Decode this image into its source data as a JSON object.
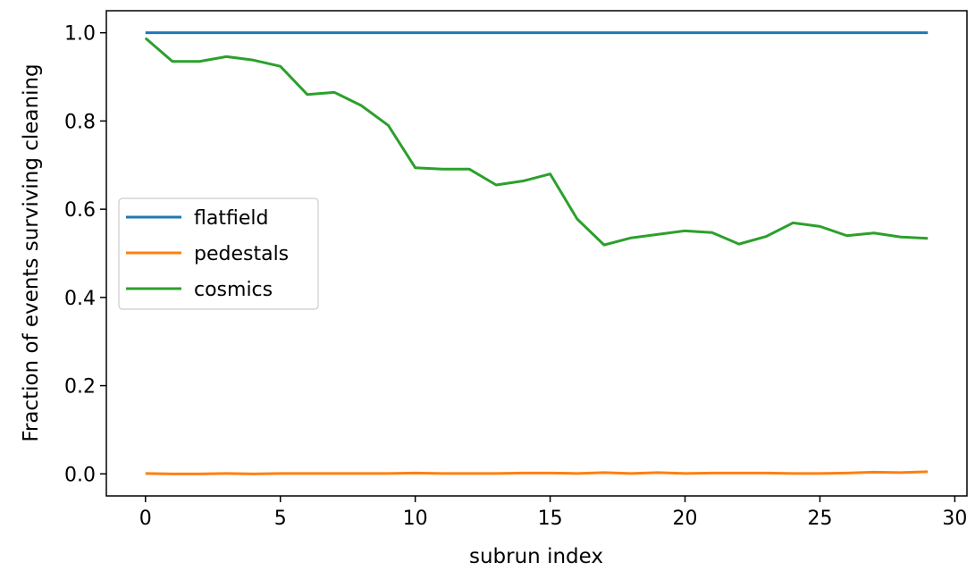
{
  "chart_data": {
    "type": "line",
    "xlabel": "subrun index",
    "ylabel": "Fraction of events surviving cleaning",
    "xlim": [
      -1.45,
      30.45
    ],
    "ylim": [
      -0.05,
      1.05
    ],
    "xticks": [
      0,
      5,
      10,
      15,
      20,
      25,
      30
    ],
    "yticks": [
      0.0,
      0.2,
      0.4,
      0.6,
      0.8,
      1.0
    ],
    "xtick_labels": [
      "0",
      "5",
      "10",
      "15",
      "20",
      "25",
      "30"
    ],
    "ytick_labels": [
      "0.0",
      "0.2",
      "0.4",
      "0.6",
      "0.8",
      "1.0"
    ],
    "grid": false,
    "legend_position": "center-left",
    "x": [
      0,
      1,
      2,
      3,
      4,
      5,
      6,
      7,
      8,
      9,
      10,
      11,
      12,
      13,
      14,
      15,
      16,
      17,
      18,
      19,
      20,
      21,
      22,
      23,
      24,
      25,
      26,
      27,
      28,
      29
    ],
    "series": [
      {
        "name": "flatfield",
        "color": "#1f77b4",
        "values": [
          1,
          1,
          1,
          1,
          1,
          1,
          1,
          1,
          1,
          1,
          1,
          1,
          1,
          1,
          1,
          1,
          1,
          1,
          1,
          1,
          1,
          1,
          1,
          1,
          1,
          1,
          1,
          1,
          1,
          1
        ]
      },
      {
        "name": "pedestals",
        "color": "#ff7f0e",
        "values": [
          0.001,
          0.0,
          0.0,
          0.001,
          0.0,
          0.001,
          0.001,
          0.001,
          0.001,
          0.001,
          0.002,
          0.001,
          0.001,
          0.001,
          0.002,
          0.002,
          0.001,
          0.003,
          0.001,
          0.003,
          0.001,
          0.002,
          0.002,
          0.002,
          0.001,
          0.001,
          0.002,
          0.004,
          0.003,
          0.005
        ]
      },
      {
        "name": "cosmics",
        "color": "#2ca02c",
        "values": [
          0.988,
          0.935,
          0.935,
          0.946,
          0.938,
          0.924,
          0.86,
          0.865,
          0.835,
          0.79,
          0.694,
          0.691,
          0.691,
          0.655,
          0.664,
          0.68,
          0.578,
          0.519,
          0.535,
          0.543,
          0.551,
          0.547,
          0.521,
          0.538,
          0.569,
          0.561,
          0.54,
          0.546,
          0.537,
          0.534
        ]
      }
    ]
  }
}
